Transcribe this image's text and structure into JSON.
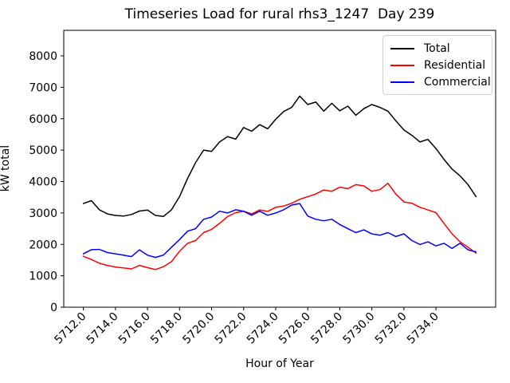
{
  "chart_data": {
    "type": "line",
    "title": "Timeseries Load for rural rhs3_1247  Day 239",
    "xlabel": "Hour of Year",
    "ylabel": "kW total",
    "x": [
      5712.0,
      5712.5,
      5713.0,
      5713.5,
      5714.0,
      5714.5,
      5715.0,
      5715.5,
      5716.0,
      5716.5,
      5717.0,
      5717.5,
      5718.0,
      5718.5,
      5719.0,
      5719.5,
      5720.0,
      5720.5,
      5721.0,
      5721.5,
      5722.0,
      5722.5,
      5723.0,
      5723.5,
      5724.0,
      5724.5,
      5725.0,
      5725.5,
      5726.0,
      5726.5,
      5727.0,
      5727.5,
      5728.0,
      5728.5,
      5729.0,
      5729.5,
      5730.0,
      5730.5,
      5731.0,
      5731.5,
      5732.0,
      5732.5,
      5733.0,
      5733.5,
      5734.0,
      5734.5,
      5735.0,
      5735.5,
      5736.0,
      5736.5
    ],
    "series": [
      {
        "name": "Total",
        "color": "#000000",
        "values": [
          3300,
          3390,
          3100,
          2970,
          2920,
          2900,
          2950,
          3060,
          3090,
          2920,
          2890,
          3100,
          3520,
          4100,
          4600,
          5000,
          4960,
          5260,
          5430,
          5350,
          5720,
          5600,
          5810,
          5680,
          5980,
          6230,
          6360,
          6720,
          6450,
          6530,
          6240,
          6490,
          6250,
          6400,
          6110,
          6320,
          6450,
          6360,
          6240,
          5930,
          5640,
          5470,
          5260,
          5340,
          5050,
          4710,
          4400,
          4180,
          3900,
          3520
        ]
      },
      {
        "name": "Residential",
        "color": "#ff0000",
        "values": [
          1620,
          1520,
          1400,
          1330,
          1280,
          1250,
          1220,
          1330,
          1260,
          1200,
          1290,
          1450,
          1780,
          2035,
          2120,
          2375,
          2480,
          2670,
          2885,
          3010,
          3055,
          2970,
          3095,
          3050,
          3180,
          3220,
          3310,
          3435,
          3520,
          3605,
          3730,
          3690,
          3820,
          3775,
          3900,
          3860,
          3690,
          3740,
          3945,
          3600,
          3350,
          3310,
          3180,
          3095,
          3010,
          2670,
          2340,
          2080,
          1910,
          1720
        ]
      },
      {
        "name": "Commercial",
        "color": "#0000ff",
        "values": [
          1700,
          1830,
          1840,
          1740,
          1700,
          1655,
          1610,
          1825,
          1655,
          1585,
          1660,
          1910,
          2150,
          2420,
          2500,
          2800,
          2870,
          3055,
          3000,
          3100,
          3055,
          2925,
          3055,
          2925,
          3000,
          3100,
          3250,
          3300,
          2900,
          2800,
          2750,
          2800,
          2630,
          2500,
          2375,
          2460,
          2335,
          2290,
          2375,
          2250,
          2335,
          2120,
          1995,
          2080,
          1950,
          2035,
          1870,
          2035,
          1825,
          1760
        ]
      }
    ],
    "xticks": [
      5712,
      5714,
      5716,
      5718,
      5720,
      5722,
      5724,
      5726,
      5728,
      5730,
      5732,
      5734
    ],
    "xtick_labels": [
      "5712.0",
      "5714.0",
      "5716.0",
      "5718.0",
      "5720.0",
      "5722.0",
      "5724.0",
      "5726.0",
      "5728.0",
      "5730.0",
      "5732.0",
      "5734.0"
    ],
    "yticks": [
      0,
      1000,
      2000,
      3000,
      4000,
      5000,
      6000,
      7000,
      8000
    ],
    "ytick_labels": [
      "0",
      "1000",
      "2000",
      "3000",
      "4000",
      "5000",
      "6000",
      "7000",
      "8000"
    ],
    "xlim": [
      5710.775,
      5737.725
    ],
    "ylim": [
      0,
      8813
    ],
    "grid": false,
    "legend": {
      "position": "upper right",
      "entries": [
        "Total",
        "Residential",
        "Commercial"
      ]
    },
    "line_width": 1.5
  }
}
